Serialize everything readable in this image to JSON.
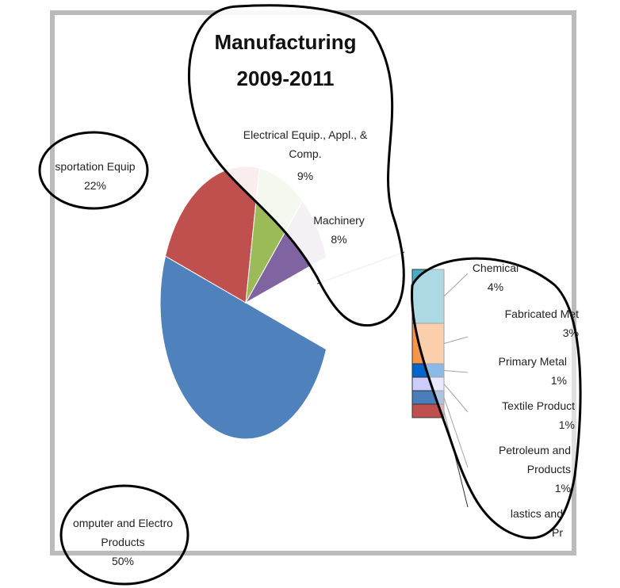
{
  "chart_data": {
    "type": "pie",
    "title": "Manufacturing\n2009-2011",
    "categories": [
      "omputer and Electro\nProducts",
      "sportation Equip",
      "Electrical Equip., Appl., &\nComp.",
      "Machinery"
    ],
    "values": [
      50,
      22,
      9,
      8
    ],
    "value_labels": [
      "50%",
      "22%",
      "9%",
      "8%"
    ],
    "colors": [
      "#4f81bd",
      "#c0504d",
      "#9bbb59",
      "#8064a2"
    ],
    "bar_categories": [
      "Chemical",
      "Fabricated Met",
      "Primary Metal",
      "Textile Product",
      "Petroleum and\nProducts",
      "lastics and\nPr"
    ],
    "bar_values": [
      4,
      3,
      1,
      1,
      1,
      1
    ],
    "bar_value_labels": [
      "4%",
      "3%",
      "1%",
      "1%",
      "1%",
      null
    ],
    "bar_colors": [
      "#4bacc6",
      "#f79646",
      "#0066cc",
      "#ccccff",
      "#4a7ebb",
      "#c0504d"
    ]
  }
}
